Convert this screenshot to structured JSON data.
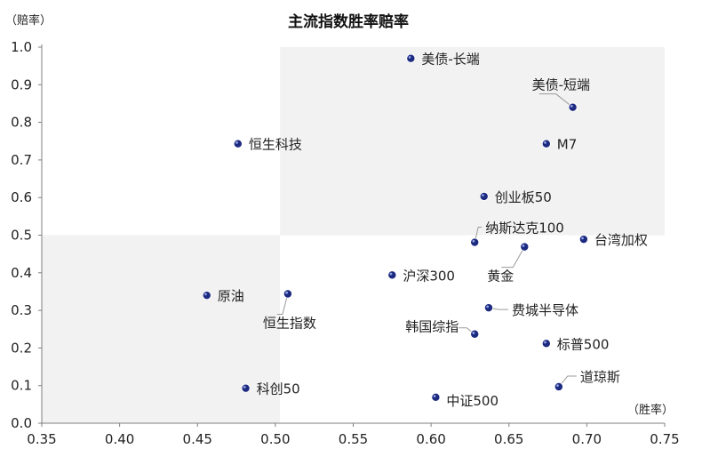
{
  "chart_data": {
    "type": "scatter",
    "title": "主流指数胜率赔率",
    "xlabel": "（胜率）",
    "ylabel": "（赔率）",
    "xlim": [
      0.35,
      0.75
    ],
    "ylim": [
      0.0,
      1.0
    ],
    "x_ticks": [
      "0.35",
      "0.40",
      "0.45",
      "0.50",
      "0.55",
      "0.60",
      "0.65",
      "0.70",
      "0.75"
    ],
    "y_ticks": [
      "0.0",
      "0.1",
      "0.2",
      "0.3",
      "0.4",
      "0.5",
      "0.6",
      "0.7",
      "0.8",
      "0.9",
      "1.0"
    ],
    "shaded_regions": [
      {
        "x": [
          0.503,
          0.75
        ],
        "y": [
          0.5,
          1.0
        ]
      },
      {
        "x": [
          0.35,
          0.503
        ],
        "y": [
          0.0,
          0.5
        ]
      }
    ],
    "points": [
      {
        "label": "美债-长端",
        "x": 0.587,
        "y": 0.97
      },
      {
        "label": "美债-短端",
        "x": 0.691,
        "y": 0.84
      },
      {
        "label": "恒生科技",
        "x": 0.476,
        "y": 0.743
      },
      {
        "label": "M7",
        "x": 0.674,
        "y": 0.743
      },
      {
        "label": "创业板50",
        "x": 0.634,
        "y": 0.603
      },
      {
        "label": "纳斯达克100",
        "x": 0.628,
        "y": 0.481
      },
      {
        "label": "台湾加权",
        "x": 0.698,
        "y": 0.489
      },
      {
        "label": "黄金",
        "x": 0.66,
        "y": 0.469
      },
      {
        "label": "沪深300",
        "x": 0.575,
        "y": 0.394
      },
      {
        "label": "原油",
        "x": 0.456,
        "y": 0.34
      },
      {
        "label": "恒生指数",
        "x": 0.508,
        "y": 0.344
      },
      {
        "label": "费城半导体",
        "x": 0.637,
        "y": 0.307
      },
      {
        "label": "韩国综指",
        "x": 0.628,
        "y": 0.237
      },
      {
        "label": "标普500",
        "x": 0.674,
        "y": 0.212
      },
      {
        "label": "道琼斯",
        "x": 0.682,
        "y": 0.097
      },
      {
        "label": "科创50",
        "x": 0.481,
        "y": 0.093
      },
      {
        "label": "中证500",
        "x": 0.603,
        "y": 0.069
      }
    ],
    "point_color": "#1c2a80",
    "shade_color": "#f2f2f2",
    "grid": false,
    "legend": "none"
  }
}
